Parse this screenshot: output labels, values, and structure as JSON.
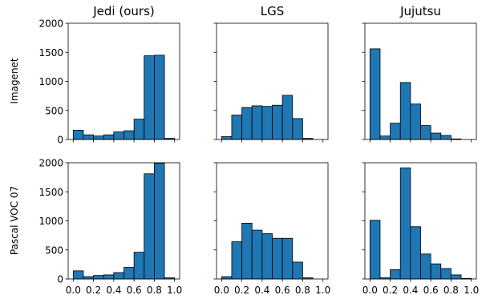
{
  "figure": {
    "col_titles": [
      "Jedi (ours)",
      "LGS",
      "Jujutsu"
    ],
    "row_labels": [
      "Imagenet",
      "Pascal VOC 07"
    ],
    "bar_color": "#1f77b4",
    "edge_color": "#000000"
  },
  "chart_data": [
    {
      "type": "bar",
      "title": "Jedi (ours)",
      "ylabel": "Imagenet",
      "bin_edges": [
        0.0,
        0.1,
        0.2,
        0.3,
        0.4,
        0.5,
        0.6,
        0.7,
        0.8,
        0.9,
        1.0
      ],
      "values": [
        160,
        80,
        60,
        80,
        130,
        150,
        350,
        1440,
        1450,
        20
      ],
      "xlim": [
        -0.05,
        1.05
      ],
      "ylim": [
        0,
        2000
      ],
      "xticks": [
        "0.0",
        "0.2",
        "0.4",
        "0.6",
        "0.8",
        "1.0"
      ],
      "yticks": [
        "0",
        "500",
        "1000",
        "1500",
        "2000"
      ]
    },
    {
      "type": "bar",
      "title": "LGS",
      "bin_edges": [
        0.0,
        0.1,
        0.2,
        0.3,
        0.4,
        0.5,
        0.6,
        0.7,
        0.8,
        0.9,
        1.0
      ],
      "values": [
        50,
        420,
        550,
        580,
        570,
        590,
        760,
        360,
        20,
        0
      ],
      "xlim": [
        -0.05,
        1.05
      ],
      "ylim": [
        0,
        2000
      ],
      "xticks": [
        "0.0",
        "0.2",
        "0.4",
        "0.6",
        "0.8",
        "1.0"
      ],
      "yticks": [
        "0",
        "500",
        "1000",
        "1500",
        "2000"
      ]
    },
    {
      "type": "bar",
      "title": "Jujutsu",
      "bin_edges": [
        0.0,
        0.1,
        0.2,
        0.3,
        0.4,
        0.5,
        0.6,
        0.7,
        0.8,
        0.9,
        1.0
      ],
      "values": [
        1560,
        60,
        280,
        980,
        610,
        240,
        110,
        70,
        10,
        0
      ],
      "xlim": [
        -0.05,
        1.05
      ],
      "ylim": [
        0,
        2000
      ],
      "xticks": [
        "0.0",
        "0.2",
        "0.4",
        "0.6",
        "0.8",
        "1.0"
      ],
      "yticks": [
        "0",
        "500",
        "1000",
        "1500",
        "2000"
      ]
    },
    {
      "type": "bar",
      "ylabel": "Pascal VOC 07",
      "bin_edges": [
        0.0,
        0.1,
        0.2,
        0.3,
        0.4,
        0.5,
        0.6,
        0.7,
        0.8,
        0.9,
        1.0
      ],
      "values": [
        140,
        40,
        60,
        70,
        110,
        200,
        460,
        1810,
        1990,
        20
      ],
      "xlim": [
        -0.05,
        1.05
      ],
      "ylim": [
        0,
        2000
      ],
      "xticks": [
        "0.0",
        "0.2",
        "0.4",
        "0.6",
        "0.8",
        "1.0"
      ],
      "yticks": [
        "0",
        "500",
        "1000",
        "1500",
        "2000"
      ]
    },
    {
      "type": "bar",
      "bin_edges": [
        0.0,
        0.1,
        0.2,
        0.3,
        0.4,
        0.5,
        0.6,
        0.7,
        0.8,
        0.9,
        1.0
      ],
      "values": [
        40,
        640,
        960,
        840,
        780,
        700,
        700,
        290,
        20,
        0
      ],
      "xlim": [
        -0.05,
        1.05
      ],
      "ylim": [
        0,
        2000
      ],
      "xticks": [
        "0.0",
        "0.2",
        "0.4",
        "0.6",
        "0.8",
        "1.0"
      ],
      "yticks": [
        "0",
        "500",
        "1000",
        "1500",
        "2000"
      ]
    },
    {
      "type": "bar",
      "bin_edges": [
        0.0,
        0.1,
        0.2,
        0.3,
        0.4,
        0.5,
        0.6,
        0.7,
        0.8,
        0.9,
        1.0
      ],
      "values": [
        1010,
        20,
        160,
        1910,
        900,
        430,
        260,
        180,
        70,
        10
      ],
      "xlim": [
        -0.05,
        1.05
      ],
      "ylim": [
        0,
        2000
      ],
      "xticks": [
        "0.0",
        "0.2",
        "0.4",
        "0.6",
        "0.8",
        "1.0"
      ],
      "yticks": [
        "0",
        "500",
        "1000",
        "1500",
        "2000"
      ]
    }
  ]
}
